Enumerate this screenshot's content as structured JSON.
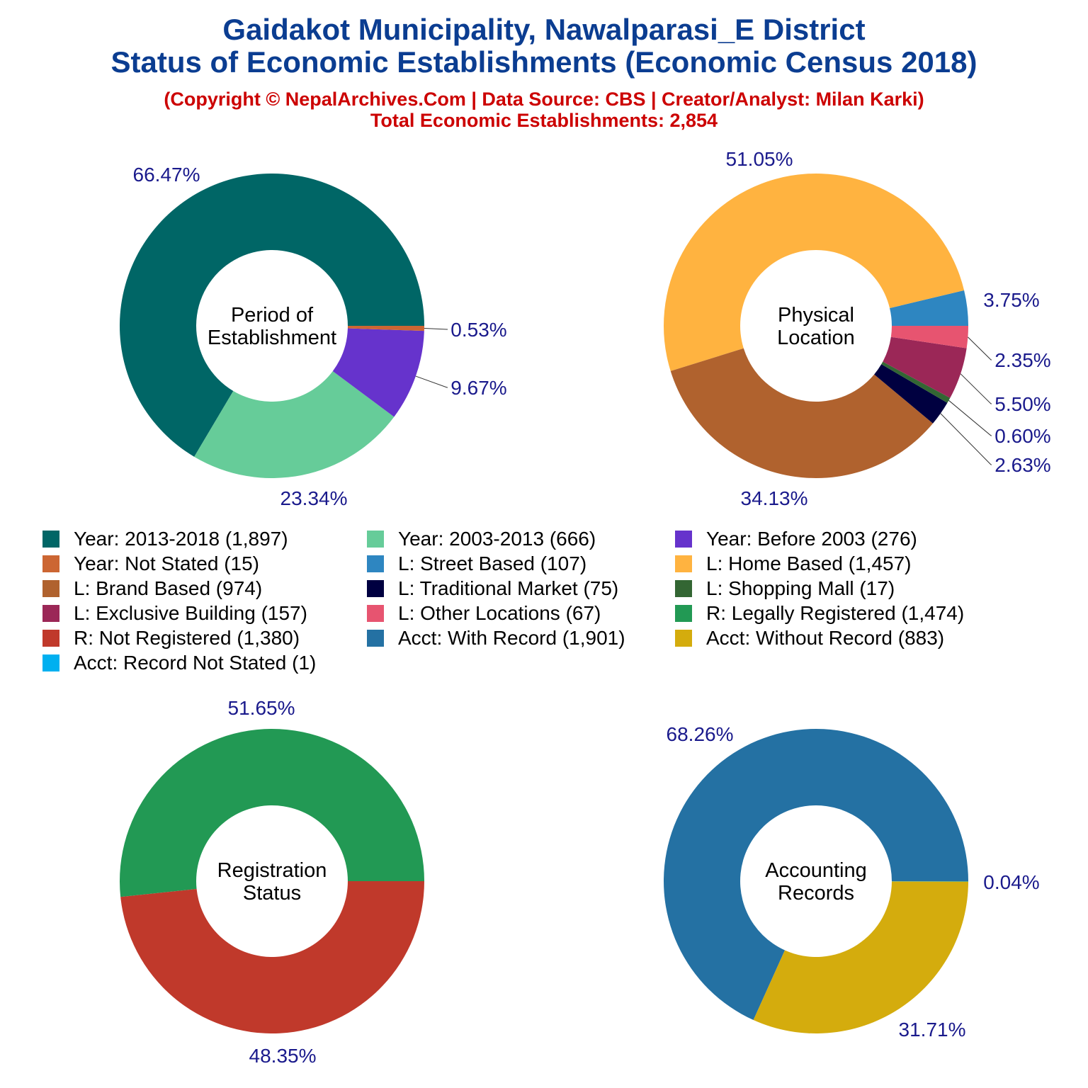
{
  "header": {
    "title_line1": "Gaidakot Municipality, Nawalparasi_E District",
    "title_line2": "Status of Economic Establishments (Economic Census 2018)",
    "copyright": "(Copyright © NepalArchives.Com | Data Source: CBS | Creator/Analyst: Milan Karki)",
    "total": "Total Economic Establishments: 2,854"
  },
  "legend": [
    {
      "label": "Year: 2013-2018 (1,897)",
      "color": "#006666"
    },
    {
      "label": "Year: 2003-2013 (666)",
      "color": "#66cc99"
    },
    {
      "label": "Year: Before 2003 (276)",
      "color": "#6633cc"
    },
    {
      "label": "Year: Not Stated (15)",
      "color": "#cc6633"
    },
    {
      "label": "L: Street Based (107)",
      "color": "#2e86c1"
    },
    {
      "label": "L: Home Based (1,457)",
      "color": "#ffb340"
    },
    {
      "label": "L: Brand Based (974)",
      "color": "#b0622e"
    },
    {
      "label": "L: Traditional Market (75)",
      "color": "#000040"
    },
    {
      "label": "L: Shopping Mall (17)",
      "color": "#336633"
    },
    {
      "label": "L: Exclusive Building (157)",
      "color": "#9b2757"
    },
    {
      "label": "L: Other Locations (67)",
      "color": "#e75470"
    },
    {
      "label": "R: Legally Registered (1,474)",
      "color": "#229954"
    },
    {
      "label": "R: Not Registered (1,380)",
      "color": "#c0392b"
    },
    {
      "label": "Acct: With Record (1,901)",
      "color": "#2471a3"
    },
    {
      "label": "Acct: Without Record (883)",
      "color": "#d4ac0d"
    },
    {
      "label": "Acct: Record Not Stated (1)",
      "color": "#00b0f0"
    }
  ],
  "chart_data": [
    {
      "type": "pie",
      "center_label": "Period of Establishment",
      "center_lines": [
        "Period of",
        "Establishment"
      ],
      "categories": [
        "Year: 2013-2018",
        "Year: 2003-2013",
        "Year: Before 2003",
        "Year: Not Stated"
      ],
      "values": [
        1897,
        666,
        276,
        15
      ],
      "percent_labels": [
        "66.47%",
        "23.34%",
        "9.67%",
        "0.53%"
      ],
      "colors": [
        "#006666",
        "#66cc99",
        "#6633cc",
        "#cc6633"
      ]
    },
    {
      "type": "pie",
      "center_label": "Physical Location",
      "center_lines": [
        "Physical",
        "Location"
      ],
      "categories": [
        "L: Street Based",
        "L: Home Based",
        "L: Brand Based",
        "L: Traditional Market",
        "L: Shopping Mall",
        "L: Exclusive Building",
        "L: Other Locations"
      ],
      "values": [
        107,
        1457,
        974,
        75,
        17,
        157,
        67
      ],
      "percent_labels": [
        "3.75%",
        "51.05%",
        "34.13%",
        "2.63%",
        "0.60%",
        "5.50%",
        "2.35%"
      ],
      "colors": [
        "#2e86c1",
        "#ffb340",
        "#b0622e",
        "#000040",
        "#336633",
        "#9b2757",
        "#e75470"
      ]
    },
    {
      "type": "pie",
      "center_label": "Registration Status",
      "center_lines": [
        "Registration",
        "Status"
      ],
      "categories": [
        "R: Legally Registered",
        "R: Not Registered"
      ],
      "values": [
        1474,
        1380
      ],
      "percent_labels": [
        "51.65%",
        "48.35%"
      ],
      "colors": [
        "#229954",
        "#c0392b"
      ]
    },
    {
      "type": "pie",
      "center_label": "Accounting Records",
      "center_lines": [
        "Accounting",
        "Records"
      ],
      "categories": [
        "Acct: With Record",
        "Acct: Without Record",
        "Acct: Record Not Stated"
      ],
      "values": [
        1901,
        883,
        1
      ],
      "percent_labels": [
        "68.26%",
        "31.71%",
        "0.04%"
      ],
      "colors": [
        "#2471a3",
        "#d4ac0d",
        "#00b0f0"
      ]
    }
  ]
}
